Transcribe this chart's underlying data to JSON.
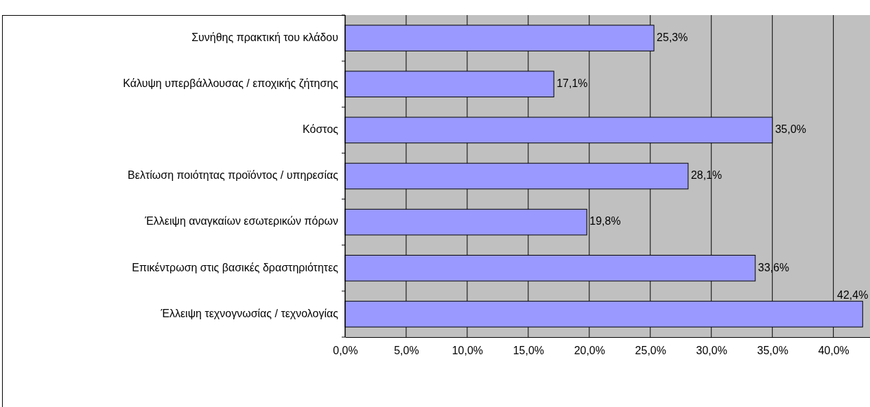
{
  "chart_data": {
    "type": "bar",
    "orientation": "horizontal",
    "categories": [
      "Συνήθης πρακτική του κλάδου",
      "Κάλυψη υπερβάλλουσας / εποχικής ζήτησης",
      "Κόστος",
      "Βελτίωση ποιότητας προϊόντος / υπηρεσίας",
      "Έλλειψη αναγκαίων εσωτερικών πόρων",
      "Επικέντρωση στις βασικές δραστηριότητες",
      "Έλλειψη τεχνογνωσίας / τεχνολογίας"
    ],
    "values": [
      25.3,
      17.1,
      35.0,
      28.1,
      19.8,
      33.6,
      42.4
    ],
    "value_labels": [
      "25,3%",
      "17,1%",
      "35,0%",
      "28,1%",
      "19,8%",
      "33,6%",
      "42,4%"
    ],
    "color": "#9999ff",
    "xlim": [
      0,
      43
    ],
    "xticks": [
      {
        "value": 0,
        "label": "0,0%"
      },
      {
        "value": 5,
        "label": "5,0%"
      },
      {
        "value": 10,
        "label": "10,0%"
      },
      {
        "value": 15,
        "label": "15,0%"
      },
      {
        "value": 20,
        "label": "20,0%"
      },
      {
        "value": 25,
        "label": "25,0%"
      },
      {
        "value": 30,
        "label": "30,0%"
      },
      {
        "value": 35,
        "label": "35,0%"
      },
      {
        "value": 40,
        "label": "40,0%"
      }
    ],
    "grid": "x"
  }
}
